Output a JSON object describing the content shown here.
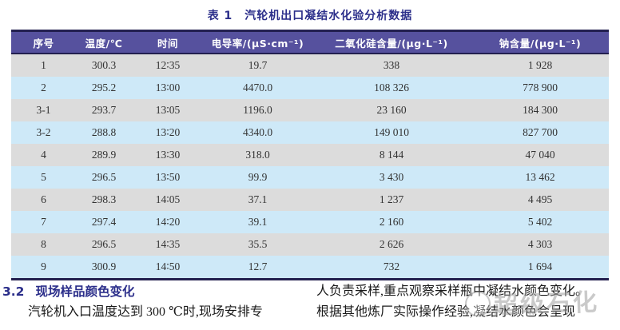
{
  "table": {
    "title": "表 1　汽轮机出口凝结水化验分析数据",
    "columns": [
      "序号",
      "温度/℃",
      "时间",
      "电导率/(μS·cm⁻¹)",
      "二氧化硅含量/(μg·L⁻¹)",
      "钠含量/(μg·L⁻¹)"
    ],
    "rows": [
      [
        "1",
        "300.3",
        "12∶35",
        "19.7",
        "338",
        "1 928"
      ],
      [
        "2",
        "295.2",
        "13∶00",
        "4470.0",
        "108 326",
        "778 900"
      ],
      [
        "3-1",
        "293.7",
        "13∶05",
        "1196.0",
        "23 160",
        "184 300"
      ],
      [
        "3-2",
        "288.8",
        "13∶20",
        "4340.0",
        "149 010",
        "827 700"
      ],
      [
        "4",
        "289.9",
        "13∶30",
        "318.0",
        "8 144",
        "47 040"
      ],
      [
        "5",
        "296.5",
        "13∶50",
        "99.9",
        "3 430",
        "13 462"
      ],
      [
        "6",
        "298.3",
        "14∶05",
        "37.1",
        "1 237",
        "4 495"
      ],
      [
        "7",
        "297.4",
        "14∶20",
        "39.1",
        "2 160",
        "5 402"
      ],
      [
        "8",
        "296.5",
        "14∶35",
        "35.5",
        "2 626",
        "4 303"
      ],
      [
        "9",
        "300.9",
        "14∶50",
        "12.7",
        "732",
        "1 694"
      ]
    ]
  },
  "section": {
    "number": "3.2",
    "heading": "现场样品颜色变化",
    "left_paragraph": "汽轮机入口温度达到 300 ℃时,现场安排专",
    "right_line1": "人负责采样,重点观察采样瓶中凝结水颜色变化。",
    "right_line2": "根据其他炼厂实际操作经验,凝结水颜色会呈现"
  },
  "watermark": {
    "text": "超级石化"
  },
  "colors": {
    "header_bg": "#56519e",
    "rule_dark": "#232050",
    "row_gray": "#dcdcdc",
    "row_blue": "#cee9f8",
    "title_blue": "#2b2e8a"
  }
}
